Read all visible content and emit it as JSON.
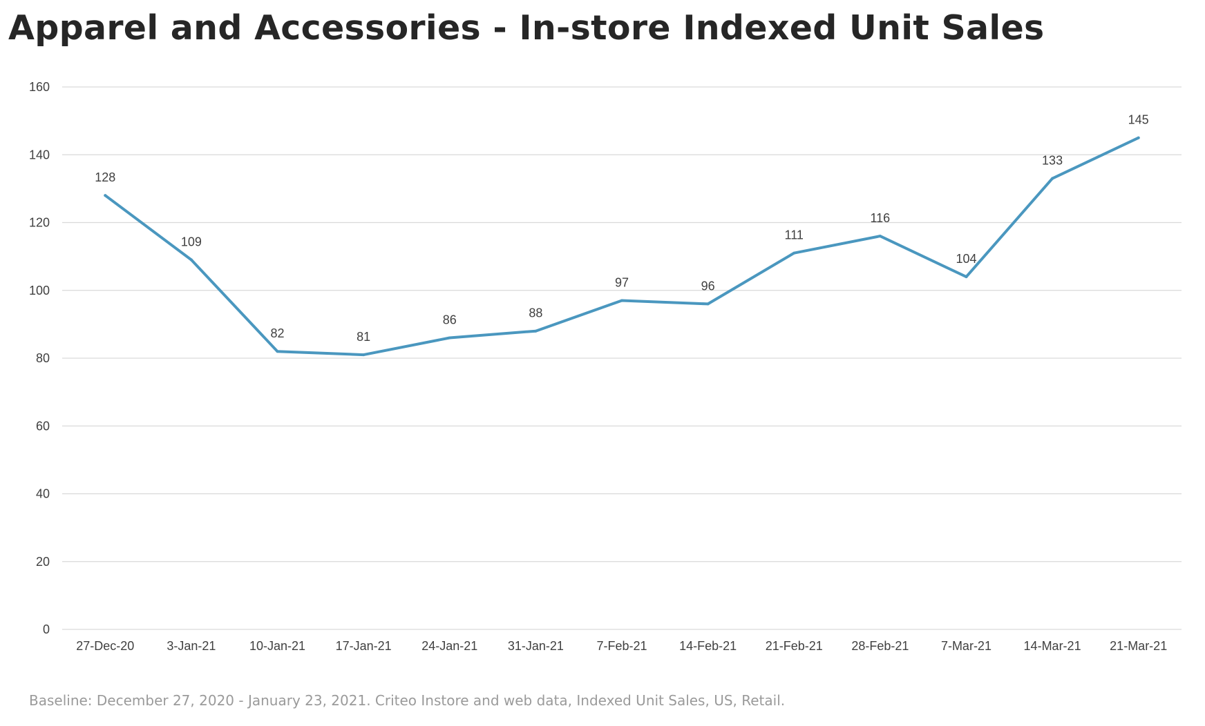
{
  "chart_data": {
    "type": "line",
    "title": "Apparel and Accessories - In-store Indexed Unit Sales",
    "xlabel": "",
    "ylabel": "",
    "categories": [
      "27-Dec-20",
      "3-Jan-21",
      "10-Jan-21",
      "17-Jan-21",
      "24-Jan-21",
      "31-Jan-21",
      "7-Feb-21",
      "14-Feb-21",
      "21-Feb-21",
      "28-Feb-21",
      "7-Mar-21",
      "14-Mar-21",
      "21-Mar-21"
    ],
    "series": [
      {
        "values": [
          128,
          109,
          82,
          81,
          86,
          88,
          97,
          96,
          111,
          116,
          104,
          133,
          145
        ],
        "color": "#4a97bf"
      }
    ],
    "ylim": [
      0,
      160
    ],
    "yticks": [
      0,
      20,
      40,
      60,
      80,
      100,
      120,
      140,
      160
    ],
    "grid": true,
    "legend": "none",
    "gridline_color": "#d9d9d9"
  },
  "footnote": "Baseline: December 27, 2020 - January 23, 2021. Criteo Instore and web data, Indexed Unit Sales, US, Retail."
}
